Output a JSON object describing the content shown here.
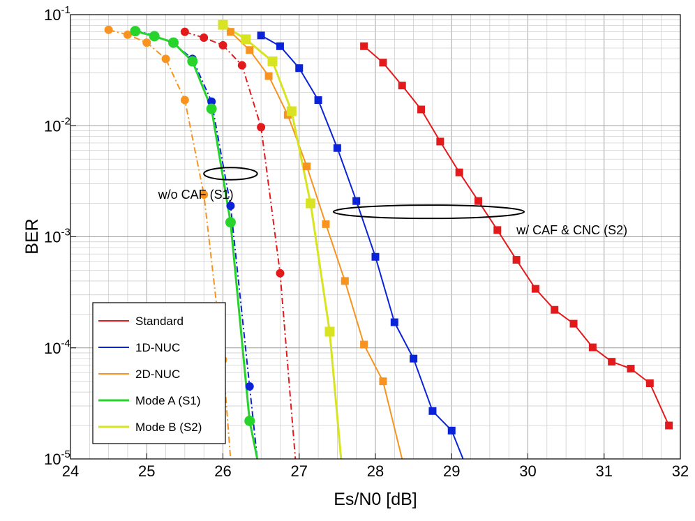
{
  "chart_data": {
    "type": "line",
    "title": "",
    "xlabel": "Es/N0 [dB]",
    "ylabel": "BER",
    "xlim": [
      24,
      32
    ],
    "ylim_log10": [
      -5,
      -1
    ],
    "yscale": "log",
    "grid": true,
    "x_ticks": [
      24,
      25,
      26,
      27,
      28,
      29,
      30,
      31,
      32
    ],
    "y_tick_labels": [
      {
        "exp": -1,
        "base": "10",
        "sup": "-1"
      },
      {
        "exp": -2,
        "base": "10",
        "sup": "-2"
      },
      {
        "exp": -3,
        "base": "10",
        "sup": "-3"
      },
      {
        "exp": -4,
        "base": "10",
        "sup": "-4"
      },
      {
        "exp": -5,
        "base": "10",
        "sup": "-5"
      }
    ],
    "legend_position": "bottom-left",
    "annotations": [
      {
        "text": "w/o CAF (S1)",
        "x": 25.15,
        "y": 0.0022
      },
      {
        "text": "w/ CAF & CNC (S2)",
        "x": 29.85,
        "y": 0.00105
      }
    ],
    "ellipses": [
      {
        "cx": 26.1,
        "cy": 0.0037,
        "rx_data": 0.35,
        "ry_decades": 0.055
      },
      {
        "cx": 28.7,
        "cy": 0.00168,
        "rx_data": 1.25,
        "ry_decades": 0.06
      }
    ],
    "series": [
      {
        "name": "Standard",
        "legend": "Standard",
        "color": "#e31a1c",
        "style": "dashdot",
        "marker": "circle",
        "in_legend": true,
        "x": [
          25.5,
          25.75,
          26.0,
          26.25,
          26.5,
          26.75,
          26.95
        ],
        "y": [
          0.07,
          0.062,
          0.053,
          0.035,
          0.0097,
          0.00047,
          1e-05
        ]
      },
      {
        "name": "1D-NUC (S1)",
        "legend": "1D-NUC",
        "color": "#0a22d8",
        "style": "dashdot",
        "marker": "circle",
        "in_legend": true,
        "x": [
          24.85,
          25.1,
          25.35,
          25.6,
          25.85,
          26.1,
          26.35,
          26.45
        ],
        "y": [
          0.072,
          0.065,
          0.055,
          0.04,
          0.0165,
          0.0019,
          4.5e-05,
          1e-05
        ]
      },
      {
        "name": "2D-NUC (S1)",
        "legend": "2D-NUC",
        "color": "#f7931e",
        "style": "dashdot",
        "marker": "circle",
        "in_legend": true,
        "x": [
          24.5,
          24.75,
          25.0,
          25.25,
          25.5,
          25.75,
          26.0,
          26.1
        ],
        "y": [
          0.073,
          0.066,
          0.056,
          0.04,
          0.017,
          0.0024,
          7.8e-05,
          1e-05
        ]
      },
      {
        "name": "Mode A (S1)",
        "legend": "Mode A (S1)",
        "color": "#27d42b",
        "style": "solid",
        "marker": "circle",
        "in_legend": true,
        "x": [
          24.85,
          25.1,
          25.35,
          25.6,
          25.85,
          26.1,
          26.35,
          26.45
        ],
        "y": [
          0.071,
          0.064,
          0.056,
          0.038,
          0.0142,
          0.00135,
          2.2e-05,
          1e-05
        ]
      },
      {
        "name": "Standard (S2)",
        "legend": "",
        "color": "#e31a1c",
        "style": "solid",
        "marker": "square",
        "in_legend": false,
        "x": [
          27.85,
          28.1,
          28.35,
          28.6,
          28.85,
          29.1,
          29.35,
          29.6,
          29.85,
          30.1,
          30.35,
          30.6,
          30.85,
          31.1,
          31.35,
          31.6,
          31.85
        ],
        "y": [
          0.052,
          0.037,
          0.023,
          0.014,
          0.0072,
          0.0038,
          0.0021,
          0.00115,
          0.00062,
          0.00034,
          0.00022,
          0.000165,
          0.000101,
          7.5e-05,
          6.5e-05,
          4.8e-05,
          2e-05
        ]
      },
      {
        "name": "1D-NUC (S2)",
        "legend": "",
        "color": "#0a22d8",
        "style": "solid",
        "marker": "square",
        "in_legend": false,
        "x": [
          26.5,
          26.75,
          27.0,
          27.25,
          27.5,
          27.75,
          28.0,
          28.25,
          28.5,
          28.75,
          29.0,
          29.15
        ],
        "y": [
          0.065,
          0.052,
          0.033,
          0.017,
          0.0063,
          0.0021,
          0.00066,
          0.00017,
          8e-05,
          2.7e-05,
          1.8e-05,
          1e-05
        ]
      },
      {
        "name": "2D-NUC (S2)",
        "legend": "",
        "color": "#f7931e",
        "style": "solid",
        "marker": "square",
        "in_legend": false,
        "x": [
          26.1,
          26.35,
          26.6,
          26.85,
          27.1,
          27.35,
          27.6,
          27.85,
          28.1,
          28.35
        ],
        "y": [
          0.07,
          0.048,
          0.028,
          0.0125,
          0.0043,
          0.0013,
          0.0004,
          0.000107,
          5e-05,
          1e-05
        ]
      },
      {
        "name": "Mode B (S2)",
        "legend": "Mode B (S2)",
        "color": "#d8e321",
        "style": "solid",
        "marker": "square",
        "in_legend": true,
        "x": [
          26.0,
          26.3,
          26.65,
          26.9,
          27.15,
          27.4,
          27.55
        ],
        "y": [
          0.081,
          0.06,
          0.038,
          0.0135,
          0.002,
          0.00014,
          1e-05
        ]
      }
    ]
  }
}
